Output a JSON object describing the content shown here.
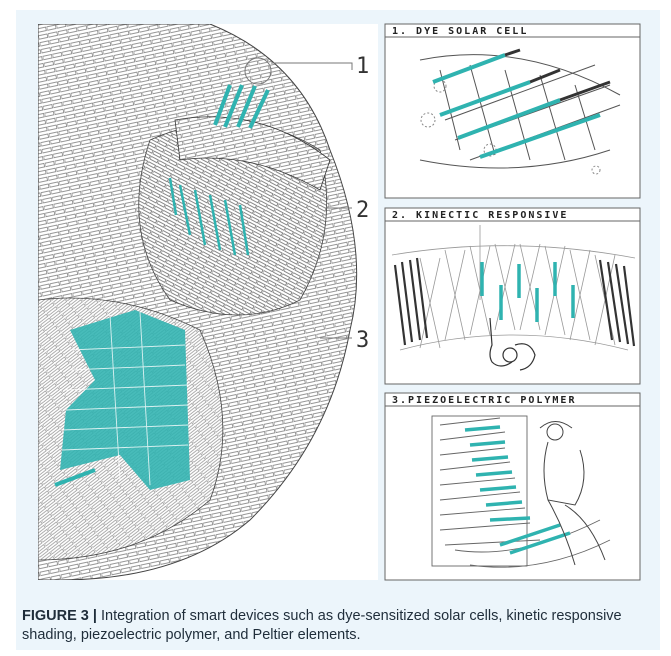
{
  "figure": {
    "callouts": [
      "1",
      "2",
      "3"
    ],
    "panels": [
      {
        "title": "1.   DYE SOLAR CELL"
      },
      {
        "title": "2. KINECTIC RESPONSIVE"
      },
      {
        "title": "3.PIEZOELECTRIC POLYMER"
      }
    ],
    "caption_label": "FIGURE 3 |",
    "caption_text": "Integration of smart devices such as dye-sensitized solar cells, kinetic responsive shading, piezoelectric polymer, and Peltier elements.",
    "colors": {
      "accent": "#2fb3b0",
      "frame": "#ecf5fb",
      "line": "#555555"
    }
  }
}
